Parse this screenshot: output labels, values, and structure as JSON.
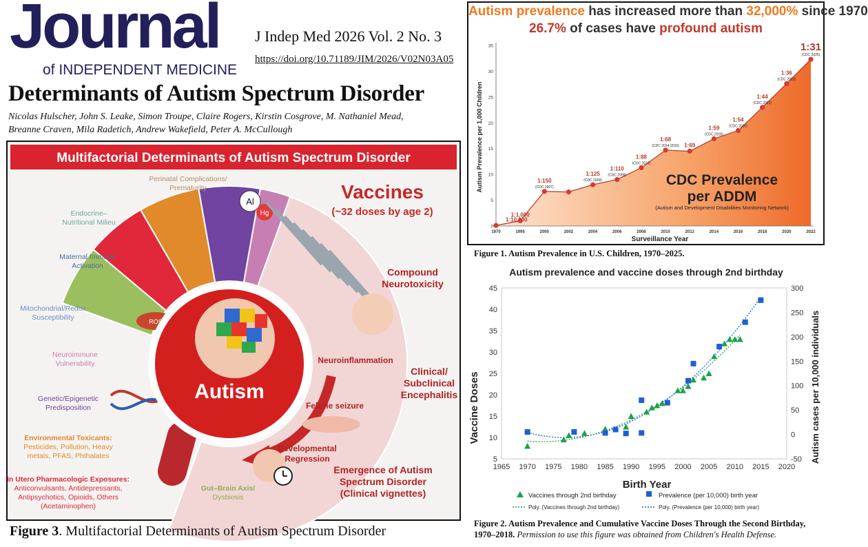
{
  "journal": {
    "word": "Journal",
    "subtitle": "of INDEPENDENT MEDICINE",
    "citation": "J Indep Med 2026 Vol. 2 No. 3",
    "doi": "https://doi.org/10.71189/JIM/2026/V02N03A05"
  },
  "paper": {
    "title": "Determinants of Autism Spectrum Disorder",
    "authors_line1": "Nicolas Hulscher, John S. Leake, Simon Troupe, Claire Rogers, Kirstin Cosgrove, M. Nathaniel Mead,",
    "authors_line2": "Breanne Craven, Mila Radetich, Andrew Wakefield, Peter A. McCullough"
  },
  "figure3": {
    "banner": "Multifactorial Determinants of Autism Spectrum Disorder",
    "caption_label": "Figure 3",
    "caption_text": ". Multifactorial Determinants of Autism Spectrum Disorder",
    "center_label": "Autism",
    "vaccines_title": "Vaccines",
    "vaccines_sub": "(~32 doses by age 2)",
    "al_label": "Al",
    "hg_label": "Hg",
    "ros_label": "ROS",
    "right_labels": {
      "compound1": "Compound",
      "compound2": "Neurotoxicity",
      "neuroinflammation": "Neuroinflammation",
      "clinical1": "Clinical/",
      "clinical2": "Subclinical",
      "clinical3": "Encephalitis",
      "febrile": "Febrile seizure",
      "dev1": "Developmental",
      "dev2": "Regression",
      "emerg1": "Emergence of Autism",
      "emerg2": "Spectrum Disorder",
      "emerg3": "(Clinical vignettes)"
    },
    "segments": [
      {
        "l1": "Perinatal Complications/",
        "l2": "Prematurity",
        "l3": "",
        "l4": "",
        "l5": "",
        "color": "#b38c6e"
      },
      {
        "l1": "Endocrine–",
        "l2": "Nutritional Milieu",
        "l3": "",
        "l4": "",
        "l5": "",
        "color": "#6aa9a3"
      },
      {
        "l1": "Maternal Immune",
        "l2": "Activation",
        "l3": "",
        "l4": "",
        "l5": "",
        "color": "#4c6e99"
      },
      {
        "l1": "Mitochondrial/Redox",
        "l2": "Susceptibility",
        "l3": "",
        "l4": "",
        "l5": "",
        "color": "#6b8fc2"
      },
      {
        "l1": "Neuroimmune",
        "l2": "Vulnerability",
        "l3": "",
        "l4": "",
        "l5": "",
        "color": "#c67fb3"
      },
      {
        "l1": "Genetic/Epigenetic",
        "l2": "Predisposition",
        "l3": "",
        "l4": "",
        "l5": "",
        "color": "#7044a0"
      },
      {
        "l1": "Environmental Toxicants:",
        "l2": "Pesticides, Pollution, Heavy",
        "l3": "metals, PFAS, Phthalates",
        "l4": "",
        "l5": "",
        "color": "#e08a2c"
      },
      {
        "l1": "In Utero Pharmacologic Exposures:",
        "l2": "Anticonvulsants, Antidepressants,",
        "l3": "Antipsychotics, Opioids, Others",
        "l4": "(Acetaminophen)",
        "l5": "",
        "color": "#e0283a"
      },
      {
        "l1": "Gut–Brain Axis/",
        "l2": "Dysbiosis",
        "l3": "",
        "l4": "",
        "l5": "",
        "color": "#9bbf5e"
      }
    ]
  },
  "figure1": {
    "headline1_a": "Autism prevalence",
    "headline1_b": " has increased more than ",
    "headline1_c": "32,000%",
    "headline1_d": " since 1970",
    "headline2_a": "26.7%",
    "headline2_b": " of cases have ",
    "headline2_c": "profound autism",
    "ylabel": "Autism Prevalence per 1,000 Children",
    "xlabel": "Surveillance Year",
    "overlay_title1": "CDC Prevalence",
    "overlay_title2": "per ADDM",
    "overlay_sub": "(Autism and Development Disabilities Monitoring Network)",
    "caption": "Figure 1. Autism Prevalence in U.S. Children, 1970–2025.",
    "accent": "#c0392b",
    "fill": "#f07a3a"
  },
  "figure2": {
    "title": "Autism prevalence and vaccine doses through 2nd birthday",
    "ylabel_left": "Vaccine Doses",
    "ylabel_right": "Autism cases per 10,000 individuals",
    "xlabel": "Birth Year",
    "legend": {
      "vaccines": "Vaccines through 2nd birthday",
      "prevalence": "Prevalence (per 10,000) birth year",
      "poly_vaccines": "Poly. (Vaccines through 2nd birthday)",
      "poly_prevalence": "Poly. (Prevalence (per 10,000) birth year)"
    },
    "caption_bold": "Figure 2. Autism Prevalence and Cumulative Vaccine Doses Through the Second Birthday, 1970–2018.",
    "caption_italic": " Permission to use this figure was obtained from Children's Health Defense.",
    "vaccine_color": "#1aa34a",
    "prevalence_color": "#1f5fd1"
  },
  "chart_data": [
    {
      "type": "area",
      "title": "Autism prevalence has increased more than 32,000% since 1970 26.7% of cases have profound autism",
      "xlabel": "Surveillance Year",
      "ylabel": "Autism Prevalence per 1,000 Children",
      "x_ticks": [
        1970,
        1995,
        2000,
        2002,
        2004,
        2006,
        2008,
        2010,
        2012,
        2014,
        2016,
        2018,
        2020,
        2022
      ],
      "y_ticks": [
        0,
        5,
        10,
        15,
        20,
        25,
        30,
        35
      ],
      "ylim": [
        0,
        35
      ],
      "grid": false,
      "points": [
        {
          "x": 1970,
          "y": 0.1,
          "label": "1:10,000",
          "source": ""
        },
        {
          "x": 1995,
          "y": 1.0,
          "label": "1:1,000",
          "source": ""
        },
        {
          "x": 2000,
          "y": 6.7,
          "label": "1:150",
          "source": "(CDC 2007)"
        },
        {
          "x": 2002,
          "y": 6.6,
          "label": "",
          "source": ""
        },
        {
          "x": 2004,
          "y": 8.0,
          "label": "1:125",
          "source": "(CDC 2009)"
        },
        {
          "x": 2006,
          "y": 9.0,
          "label": "1:110",
          "source": "(CDC 2009)"
        },
        {
          "x": 2008,
          "y": 11.3,
          "label": "1:88",
          "source": "(CDC 2012)"
        },
        {
          "x": 2010,
          "y": 14.7,
          "label": "1:68",
          "source": "(CDC 2014-2016)"
        },
        {
          "x": 2012,
          "y": 14.5,
          "label": "1:69",
          "source": ""
        },
        {
          "x": 2014,
          "y": 16.9,
          "label": "1:59",
          "source": "(CDC 2018)"
        },
        {
          "x": 2016,
          "y": 18.5,
          "label": "1:54",
          "source": "(CDC 2020)"
        },
        {
          "x": 2018,
          "y": 23.0,
          "label": "1:44",
          "source": "(CDC 2021)"
        },
        {
          "x": 2020,
          "y": 27.6,
          "label": "1:36",
          "source": "(CDC 2023)"
        },
        {
          "x": 2022,
          "y": 32.3,
          "label": "1:31",
          "source": "(CDC 2025)"
        }
      ]
    },
    {
      "type": "scatter",
      "title": "Autism prevalence and vaccine doses through 2nd birthday",
      "xlabel": "Birth Year",
      "ylabel": "Vaccine Doses",
      "ylabel_right": "Autism cases per 10,000 individuals",
      "xlim": [
        1965,
        2020
      ],
      "x_ticks": [
        1965,
        1970,
        1975,
        1980,
        1985,
        1990,
        1995,
        2000,
        2005,
        2010,
        2015,
        2020
      ],
      "ylim": [
        5,
        45
      ],
      "y_ticks": [
        5,
        10,
        15,
        20,
        25,
        30,
        35,
        40,
        45
      ],
      "ylim_right": [
        -50,
        300
      ],
      "y_ticks_right": [
        -50,
        0,
        50,
        100,
        150,
        200,
        250,
        300
      ],
      "legend_position": "bottom",
      "series": [
        {
          "name": "Vaccines through 2nd birthday",
          "marker": "triangle",
          "axis": "left",
          "x": [
            1970,
            1977,
            1978,
            1981,
            1985,
            1989,
            1990,
            1993,
            1994,
            1995,
            1996,
            1999,
            2000,
            2001,
            2002,
            2004,
            2005,
            2006,
            2008,
            2009,
            2010,
            2011
          ],
          "y": [
            8,
            9.5,
            10.5,
            11,
            12,
            12.5,
            15,
            16,
            17,
            17.5,
            18,
            21,
            21,
            22,
            23.5,
            24,
            25,
            29,
            32,
            33,
            33,
            33
          ]
        },
        {
          "name": "Prevalence (per 10,000) birth year",
          "marker": "square",
          "axis": "right",
          "x": [
            1970,
            1979,
            1985,
            1987,
            1989,
            1992,
            1992,
            1997,
            2001,
            2002,
            2007,
            2012,
            2015
          ],
          "y": [
            5,
            5,
            3,
            10,
            2,
            3,
            70,
            65,
            110,
            145,
            180,
            230,
            275
          ]
        }
      ],
      "trendlines": [
        "Poly. (Vaccines through 2nd birthday)",
        "Poly. (Prevalence (per 10,000) birth year)"
      ]
    }
  ]
}
